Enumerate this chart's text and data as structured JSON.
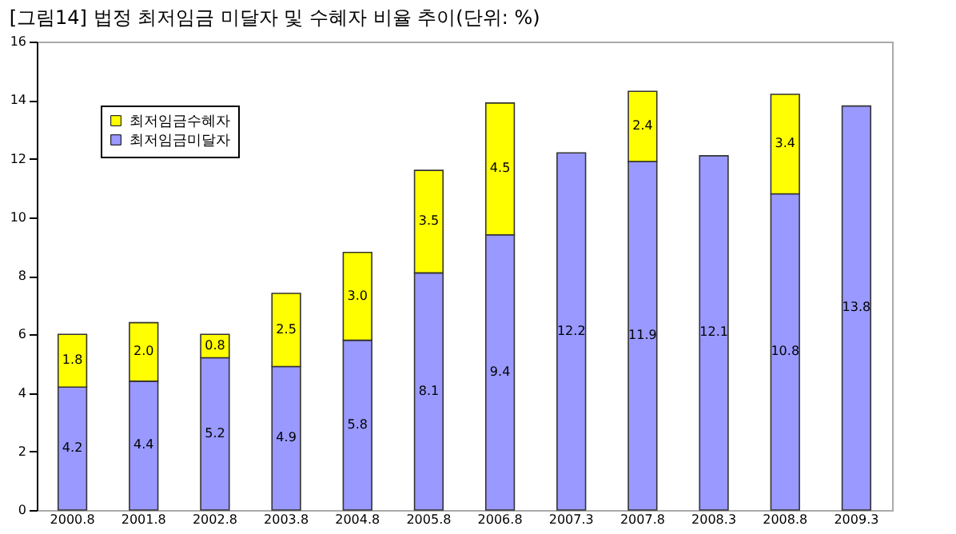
{
  "chart_data": {
    "type": "bar",
    "title": "[그림14] 법정 최저임금 미달자 및 수혜자 비율 추이(단위: %)",
    "categories": [
      "2000.8",
      "2001.8",
      "2002.8",
      "2003.8",
      "2004.8",
      "2005.8",
      "2006.8",
      "2007.3",
      "2007.8",
      "2008.3",
      "2008.8",
      "2009.3"
    ],
    "stacked": true,
    "series": [
      {
        "name": "최저임금미달자",
        "color": "#9999ff",
        "values": [
          4.2,
          4.4,
          5.2,
          4.9,
          5.8,
          8.1,
          9.4,
          12.2,
          11.9,
          12.1,
          10.8,
          13.8
        ],
        "value_labels": [
          "4.2",
          "4.4",
          "5.2",
          "4.9",
          "5.8",
          "8.1",
          "9.4",
          "12.2",
          "11.9",
          "12.1",
          "10.8",
          "13.8"
        ]
      },
      {
        "name": "최저임금수혜자",
        "color": "#ffff00",
        "values": [
          1.8,
          2.0,
          0.8,
          2.5,
          3.0,
          3.5,
          4.5,
          null,
          2.4,
          null,
          3.4,
          null
        ],
        "value_labels": [
          "1.8",
          "2.0",
          "0.8",
          "2.5",
          "3.0",
          "3.5",
          "4.5",
          null,
          "2.4",
          null,
          "3.4",
          null
        ]
      }
    ],
    "ylim": [
      0,
      16
    ],
    "yticks": [
      0,
      2,
      4,
      6,
      8,
      10,
      12,
      14,
      16
    ],
    "grid": false,
    "legend": "top left"
  }
}
